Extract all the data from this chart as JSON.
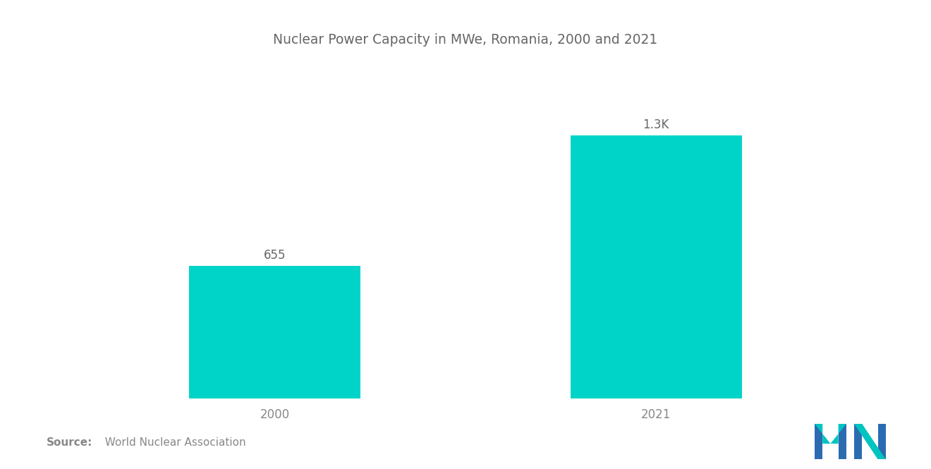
{
  "title": "Nuclear Power Capacity in MWe, Romania, 2000 and 2021",
  "categories": [
    "2000",
    "2021"
  ],
  "values": [
    655,
    1300
  ],
  "bar_labels": [
    "655",
    "1.3K"
  ],
  "bar_color": "#00D4C8",
  "background_color": "#ffffff",
  "title_fontsize": 13.5,
  "label_fontsize": 12,
  "tick_fontsize": 12,
  "title_color": "#666666",
  "label_color": "#666666",
  "tick_color": "#888888",
  "source_bold": "Source:",
  "source_normal": "  World Nuclear Association",
  "ylim": [
    0,
    1600
  ],
  "bar_width": 0.45,
  "xlim": [
    -0.55,
    1.55
  ]
}
